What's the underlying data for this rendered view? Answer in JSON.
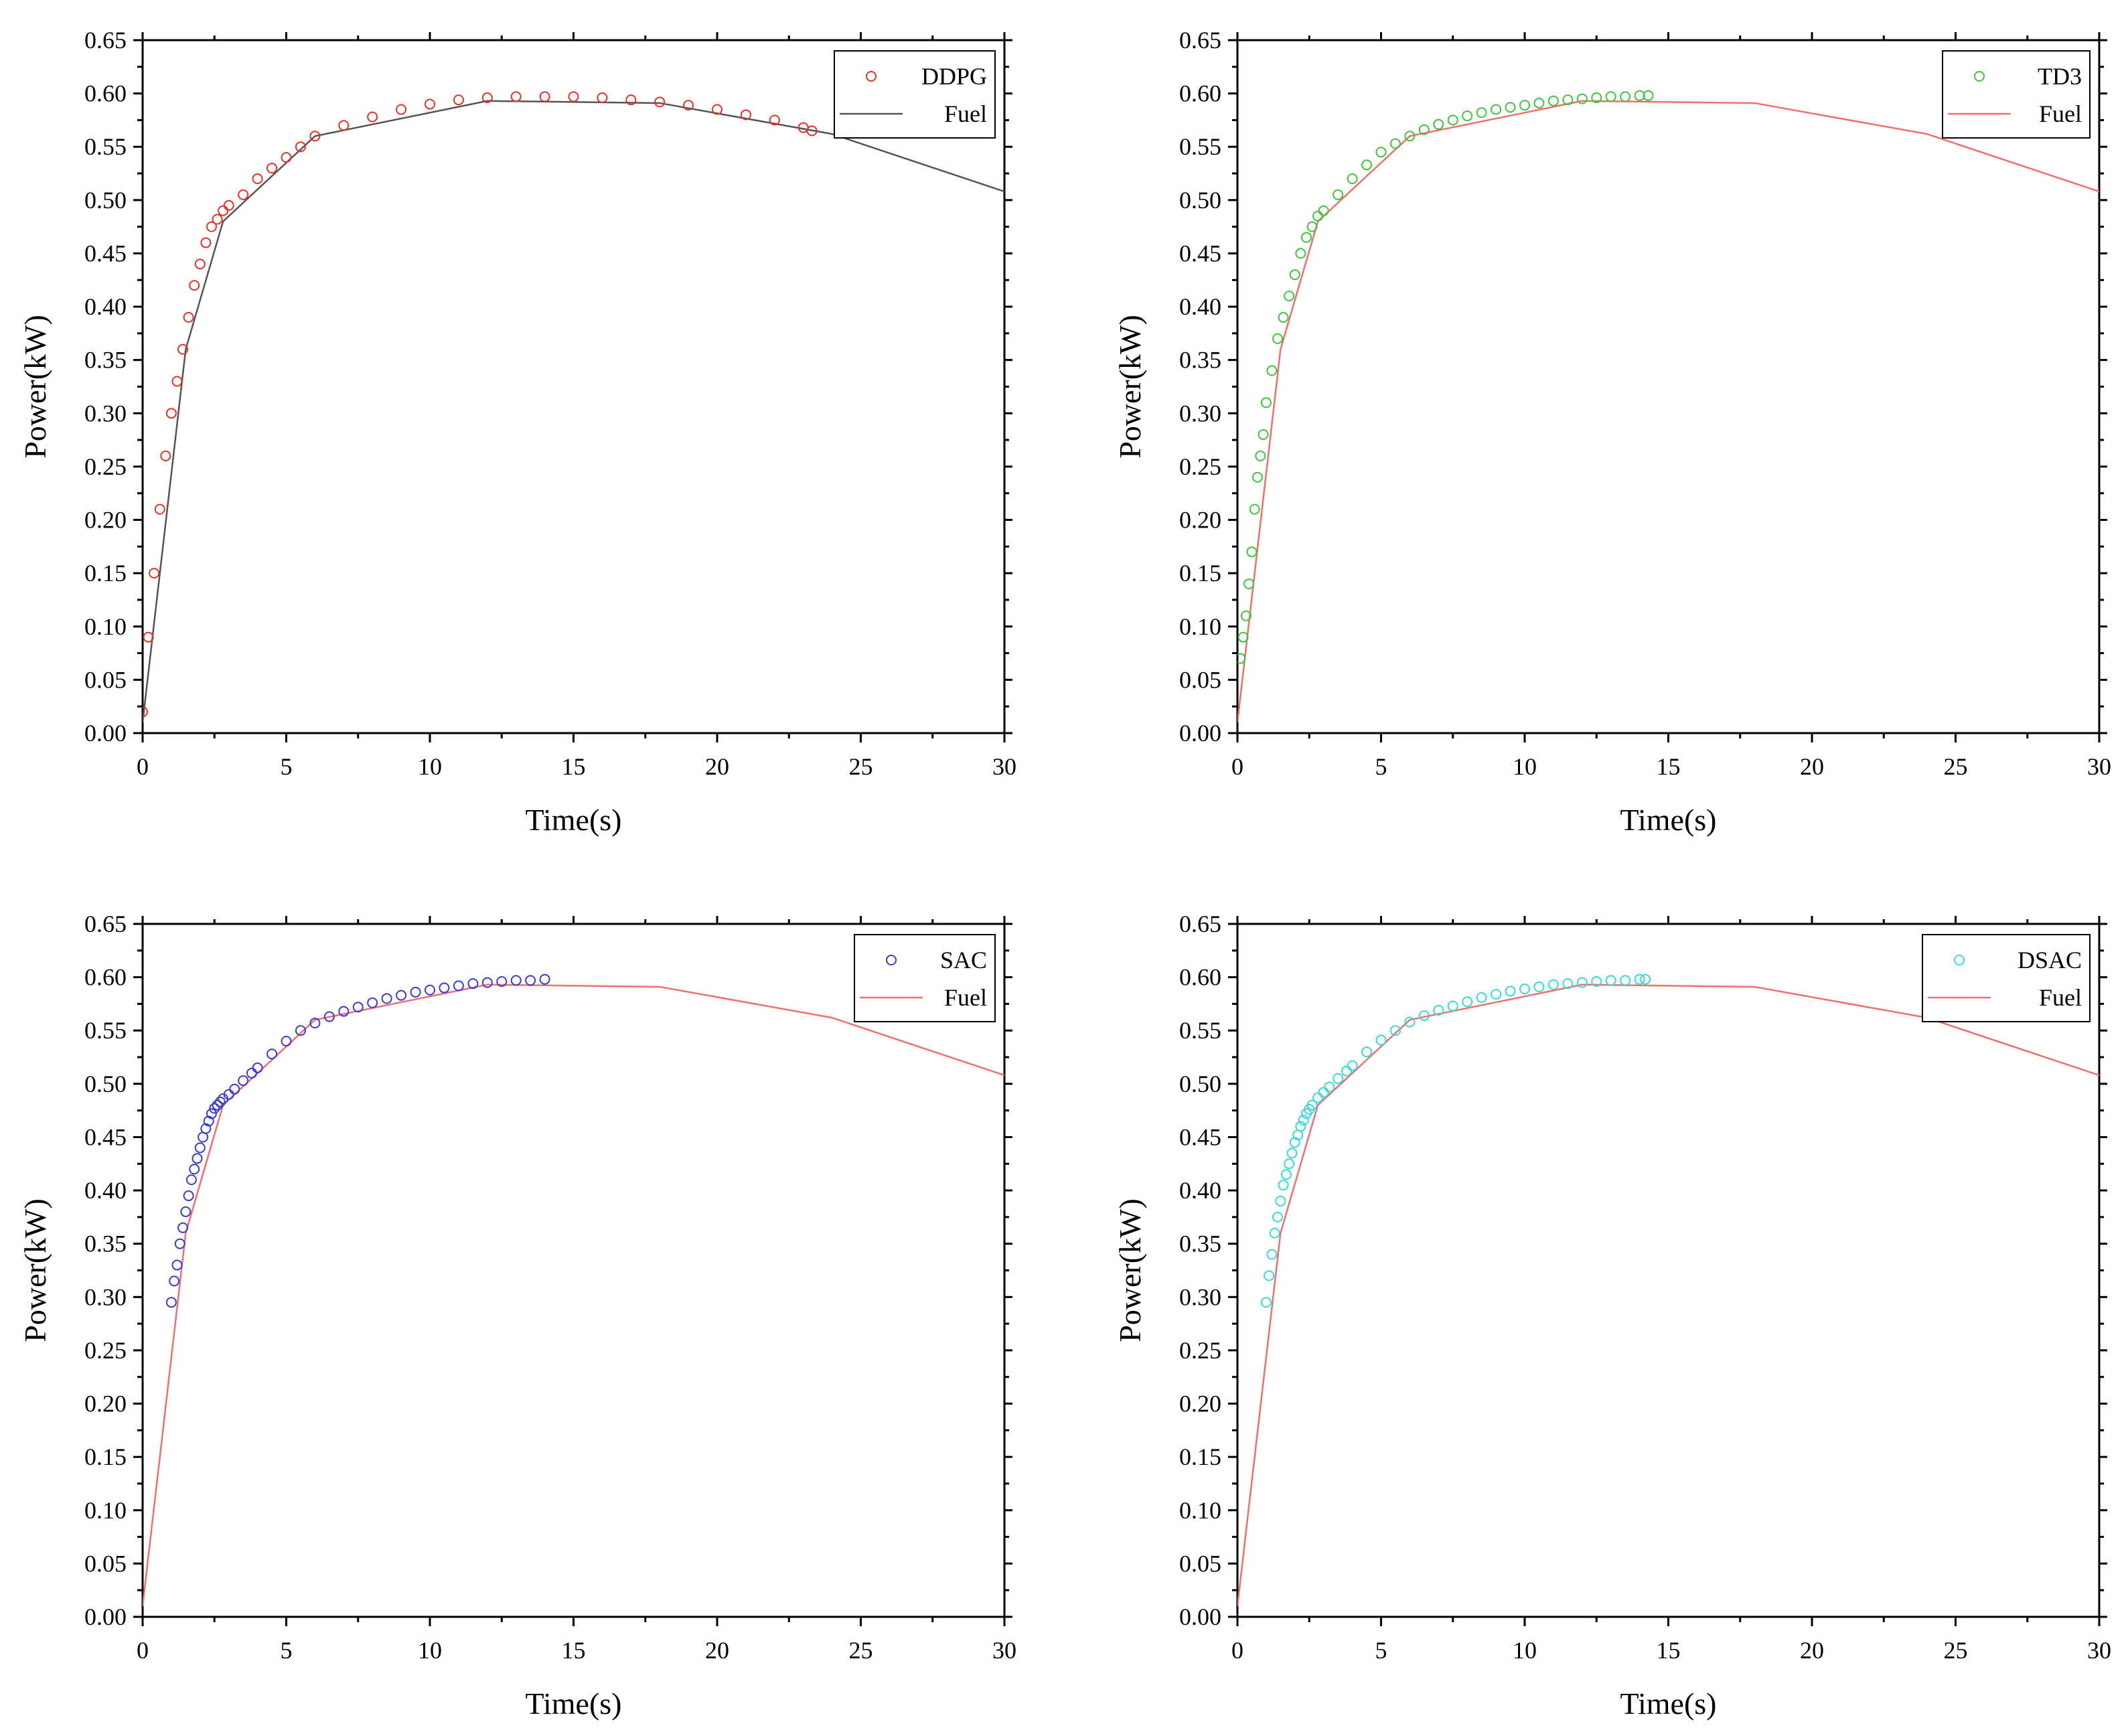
{
  "chart_data": [
    {
      "type": "scatter",
      "xlabel": "Time(s)",
      "ylabel": "Power(kW)",
      "xlim": [
        0,
        30
      ],
      "ylim": [
        0,
        0.65
      ],
      "x_ticks": [
        "0",
        "5",
        "10",
        "15",
        "20",
        "25",
        "30"
      ],
      "y_ticks": [
        "0.00",
        "0.05",
        "0.10",
        "0.15",
        "0.20",
        "0.25",
        "0.30",
        "0.35",
        "0.40",
        "0.45",
        "0.50",
        "0.55",
        "0.60",
        "0.65"
      ],
      "legend_position": "top-right",
      "series": [
        {
          "name": "DDPG",
          "kind": "markers",
          "color": "#e8302a",
          "x": [
            0.0,
            0.2,
            0.4,
            0.6,
            0.8,
            1.0,
            1.2,
            1.4,
            1.6,
            1.8,
            2.0,
            2.2,
            2.4,
            2.6,
            2.8,
            3.0,
            3.5,
            4.0,
            4.5,
            5.0,
            5.5,
            6.0,
            7.0,
            8.0,
            9.0,
            10.0,
            11.0,
            12.0,
            13.0,
            14.0,
            15.0,
            16.0,
            17.0,
            18.0,
            19.0,
            20.0,
            21.0,
            22.0,
            23.0,
            23.3
          ],
          "y": [
            0.02,
            0.09,
            0.15,
            0.21,
            0.26,
            0.3,
            0.33,
            0.36,
            0.39,
            0.42,
            0.44,
            0.46,
            0.475,
            0.482,
            0.49,
            0.495,
            0.505,
            0.52,
            0.53,
            0.54,
            0.55,
            0.56,
            0.57,
            0.578,
            0.585,
            0.59,
            0.594,
            0.596,
            0.597,
            0.597,
            0.597,
            0.596,
            0.594,
            0.592,
            0.589,
            0.585,
            0.58,
            0.575,
            0.568,
            0.565
          ]
        },
        {
          "name": "Fuel",
          "kind": "line",
          "color": "#555555",
          "x": [
            0,
            1.5,
            2.8,
            6,
            12,
            18,
            24,
            30
          ],
          "y": [
            0.01,
            0.36,
            0.48,
            0.56,
            0.593,
            0.591,
            0.562,
            0.508
          ]
        }
      ]
    },
    {
      "type": "scatter",
      "xlabel": "Time(s)",
      "ylabel": "Power(kW)",
      "xlim": [
        0,
        30
      ],
      "ylim": [
        0,
        0.65
      ],
      "x_ticks": [
        "0",
        "5",
        "10",
        "15",
        "20",
        "25",
        "30"
      ],
      "y_ticks": [
        "0.00",
        "0.05",
        "0.10",
        "0.15",
        "0.20",
        "0.25",
        "0.30",
        "0.35",
        "0.40",
        "0.45",
        "0.50",
        "0.55",
        "0.60",
        "0.65"
      ],
      "legend_position": "top-right",
      "series": [
        {
          "name": "TD3",
          "kind": "markers",
          "color": "#3ec43e",
          "x": [
            0.1,
            0.2,
            0.3,
            0.4,
            0.5,
            0.6,
            0.7,
            0.8,
            0.9,
            1.0,
            1.2,
            1.4,
            1.6,
            1.8,
            2.0,
            2.2,
            2.4,
            2.6,
            2.8,
            3.0,
            3.5,
            4.0,
            4.5,
            5.0,
            5.5,
            6.0,
            6.5,
            7.0,
            7.5,
            8.0,
            8.5,
            9.0,
            9.5,
            10.0,
            10.5,
            11.0,
            11.5,
            12.0,
            12.5,
            13.0,
            13.5,
            14.0,
            14.3
          ],
          "y": [
            0.07,
            0.09,
            0.11,
            0.14,
            0.17,
            0.21,
            0.24,
            0.26,
            0.28,
            0.31,
            0.34,
            0.37,
            0.39,
            0.41,
            0.43,
            0.45,
            0.465,
            0.475,
            0.485,
            0.49,
            0.505,
            0.52,
            0.533,
            0.545,
            0.553,
            0.56,
            0.566,
            0.571,
            0.575,
            0.579,
            0.582,
            0.585,
            0.587,
            0.589,
            0.591,
            0.593,
            0.594,
            0.595,
            0.596,
            0.597,
            0.597,
            0.598,
            0.598
          ]
        },
        {
          "name": "Fuel",
          "kind": "line",
          "color": "#f07070",
          "x": [
            0,
            1.5,
            2.8,
            6,
            12,
            18,
            24,
            30
          ],
          "y": [
            0.01,
            0.36,
            0.48,
            0.56,
            0.593,
            0.591,
            0.562,
            0.508
          ]
        }
      ]
    },
    {
      "type": "scatter",
      "xlabel": "Time(s)",
      "ylabel": "Power(kW)",
      "xlim": [
        0,
        30
      ],
      "ylim": [
        0,
        0.65
      ],
      "x_ticks": [
        "0",
        "5",
        "10",
        "15",
        "20",
        "25",
        "30"
      ],
      "y_ticks": [
        "0.00",
        "0.05",
        "0.10",
        "0.15",
        "0.20",
        "0.25",
        "0.30",
        "0.35",
        "0.40",
        "0.45",
        "0.50",
        "0.55",
        "0.60",
        "0.65"
      ],
      "legend_position": "top-right",
      "series": [
        {
          "name": "SAC",
          "kind": "markers",
          "color": "#3a3ad8",
          "x": [
            1.0,
            1.1,
            1.2,
            1.3,
            1.4,
            1.5,
            1.6,
            1.7,
            1.8,
            1.9,
            2.0,
            2.1,
            2.2,
            2.3,
            2.4,
            2.5,
            2.6,
            2.7,
            2.8,
            3.0,
            3.2,
            3.5,
            3.8,
            4.0,
            4.5,
            5.0,
            5.5,
            6.0,
            6.5,
            7.0,
            7.5,
            8.0,
            8.5,
            9.0,
            9.5,
            10.0,
            10.5,
            11.0,
            11.5,
            12.0,
            12.5,
            13.0,
            13.5,
            14.0
          ],
          "y": [
            0.295,
            0.315,
            0.33,
            0.35,
            0.365,
            0.38,
            0.395,
            0.41,
            0.42,
            0.43,
            0.44,
            0.45,
            0.458,
            0.465,
            0.472,
            0.477,
            0.48,
            0.483,
            0.486,
            0.49,
            0.495,
            0.503,
            0.51,
            0.515,
            0.528,
            0.54,
            0.55,
            0.557,
            0.563,
            0.568,
            0.572,
            0.576,
            0.58,
            0.583,
            0.586,
            0.588,
            0.59,
            0.592,
            0.594,
            0.595,
            0.596,
            0.597,
            0.597,
            0.598
          ]
        },
        {
          "name": "Fuel",
          "kind": "line",
          "color": "#f07070",
          "x": [
            0,
            1.5,
            2.8,
            6,
            12,
            18,
            24,
            30
          ],
          "y": [
            0.01,
            0.36,
            0.48,
            0.56,
            0.593,
            0.591,
            0.562,
            0.508
          ]
        }
      ]
    },
    {
      "type": "scatter",
      "xlabel": "Time(s)",
      "ylabel": "Power(kW)",
      "xlim": [
        0,
        30
      ],
      "ylim": [
        0,
        0.65
      ],
      "x_ticks": [
        "0",
        "5",
        "10",
        "15",
        "20",
        "25",
        "30"
      ],
      "y_ticks": [
        "0.00",
        "0.05",
        "0.10",
        "0.15",
        "0.20",
        "0.25",
        "0.30",
        "0.35",
        "0.40",
        "0.45",
        "0.50",
        "0.55",
        "0.60",
        "0.65"
      ],
      "legend_position": "top-right",
      "series": [
        {
          "name": "DSAC",
          "kind": "markers",
          "color": "#3ad8d8",
          "x": [
            1.0,
            1.1,
            1.2,
            1.3,
            1.4,
            1.5,
            1.6,
            1.7,
            1.8,
            1.9,
            2.0,
            2.1,
            2.2,
            2.3,
            2.4,
            2.5,
            2.6,
            2.8,
            3.0,
            3.2,
            3.5,
            3.8,
            4.0,
            4.5,
            5.0,
            5.5,
            6.0,
            6.5,
            7.0,
            7.5,
            8.0,
            8.5,
            9.0,
            9.5,
            10.0,
            10.5,
            11.0,
            11.5,
            12.0,
            12.5,
            13.0,
            13.5,
            14.0,
            14.2
          ],
          "y": [
            0.295,
            0.32,
            0.34,
            0.36,
            0.375,
            0.39,
            0.405,
            0.415,
            0.425,
            0.435,
            0.445,
            0.452,
            0.46,
            0.466,
            0.472,
            0.476,
            0.48,
            0.487,
            0.492,
            0.497,
            0.505,
            0.512,
            0.517,
            0.53,
            0.541,
            0.55,
            0.558,
            0.564,
            0.569,
            0.573,
            0.577,
            0.581,
            0.584,
            0.587,
            0.589,
            0.591,
            0.593,
            0.594,
            0.595,
            0.596,
            0.597,
            0.597,
            0.598,
            0.598
          ]
        },
        {
          "name": "Fuel",
          "kind": "line",
          "color": "#f07070",
          "x": [
            0,
            1.5,
            2.8,
            6,
            12,
            18,
            24,
            30
          ],
          "y": [
            0.01,
            0.36,
            0.48,
            0.56,
            0.593,
            0.591,
            0.562,
            0.508
          ]
        }
      ]
    }
  ]
}
